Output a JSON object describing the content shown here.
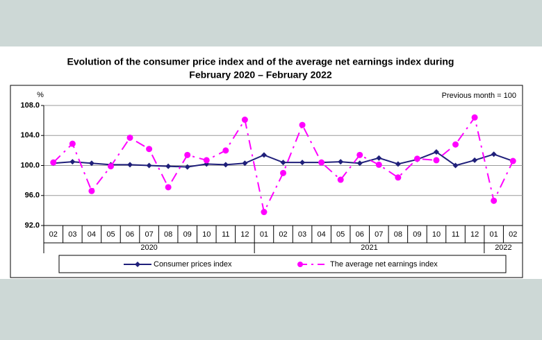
{
  "chart_data": {
    "type": "line",
    "title": [
      "Evolution of the consumer price index and of the average net earnings index during",
      "February 2020 – February 2022"
    ],
    "y_unit": "%",
    "note": "Previous month = 100",
    "categories": [
      "02",
      "03",
      "04",
      "05",
      "06",
      "07",
      "08",
      "09",
      "10",
      "11",
      "12",
      "01",
      "02",
      "03",
      "04",
      "05",
      "06",
      "07",
      "08",
      "09",
      "10",
      "11",
      "12",
      "01",
      "02"
    ],
    "year_groups": [
      {
        "label": "2020",
        "count": 11
      },
      {
        "label": "2021",
        "count": 12
      },
      {
        "label": "2022",
        "count": 2
      }
    ],
    "series": [
      {
        "name": "Consumer prices index",
        "color": "#1f1f7a",
        "marker": "diamond",
        "values": [
          100.3,
          100.5,
          100.3,
          100.1,
          100.1,
          100.0,
          99.9,
          99.8,
          100.2,
          100.1,
          100.3,
          101.4,
          100.4,
          100.4,
          100.4,
          100.5,
          100.3,
          101.0,
          100.2,
          100.8,
          101.8,
          100.0,
          100.7,
          101.5,
          100.6
        ]
      },
      {
        "name": "The average net earnings index",
        "color": "#ff00ff",
        "marker": "circle",
        "dash": "dash-dot",
        "values": [
          100.4,
          102.9,
          96.6,
          99.9,
          103.7,
          102.2,
          97.1,
          101.4,
          100.7,
          102.0,
          106.1,
          93.8,
          99.0,
          105.4,
          100.4,
          98.1,
          101.4,
          100.1,
          98.4,
          100.9,
          100.7,
          102.8,
          106.4,
          95.3,
          100.6
        ]
      }
    ],
    "ylim": [
      92,
      108
    ],
    "yticks": [
      {
        "value": 92,
        "label": "92.0"
      },
      {
        "value": 96,
        "label": "96.0"
      },
      {
        "value": 100,
        "label": "100.0"
      },
      {
        "value": 104,
        "label": "104.0"
      },
      {
        "value": 108,
        "label": "108.0"
      }
    ],
    "grid": true
  }
}
